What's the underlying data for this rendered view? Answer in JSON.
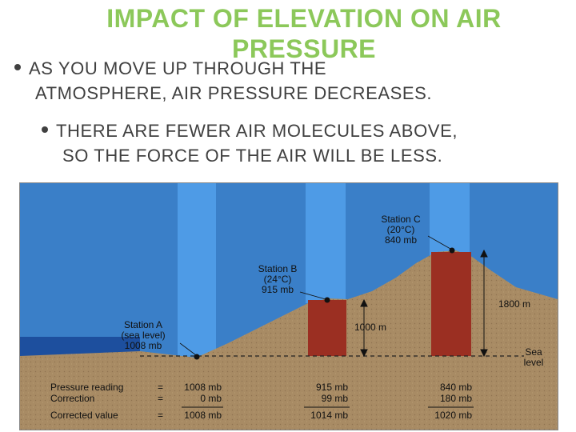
{
  "slide": {
    "title": "IMPACT OF ELEVATION ON AIR PRESSURE",
    "bullets": [
      {
        "line1": "AS YOU MOVE UP THROUGH THE",
        "line2": "ATMOSPHERE, AIR PRESSURE DECREASES."
      },
      {
        "line1": "THERE ARE FEWER AIR MOLECULES ABOVE,",
        "line2": "SO THE FORCE OF THE AIR WILL BE LESS."
      }
    ]
  },
  "diagram": {
    "station_a": {
      "l1": "Station A",
      "l2": "(sea level)",
      "l3": "1008 mb"
    },
    "station_b": {
      "l1": "Station B",
      "l2": "(24°C)",
      "l3": "915 mb"
    },
    "station_c": {
      "l1": "Station C",
      "l2": "(20°C)",
      "l3": "840 mb"
    },
    "height_b": "1000 m",
    "height_c": "1800 m",
    "sea_level": {
      "l1": "Sea",
      "l2": "level"
    },
    "table": {
      "rows": [
        {
          "label": "Pressure reading",
          "op": "=",
          "a": "1008 mb",
          "b": "915 mb",
          "c": "840 mb"
        },
        {
          "label": "Correction",
          "op": "=",
          "a": "0 mb",
          "b": "99 mb",
          "c": "180 mb"
        },
        {
          "label": "Corrected value",
          "op": "=",
          "a": "1008 mb",
          "b": "1014 mb",
          "c": "1020 mb"
        }
      ]
    },
    "colors": {
      "sky": "#3a7fc8",
      "column": "#4e9be6",
      "ground": "#a88b64",
      "pressure": "#9b2f22",
      "sea": "#1d4f9e"
    }
  }
}
